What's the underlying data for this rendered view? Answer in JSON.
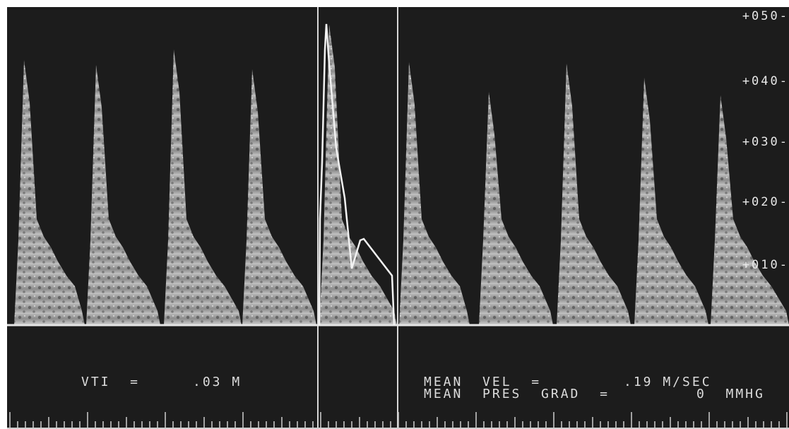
{
  "scale": {
    "labels": [
      "+050-",
      "+040-",
      "+030-",
      "+020-",
      "+010-"
    ]
  },
  "measurements": {
    "vti_label": "VTI  =",
    "vti_value": ".03 M",
    "mean_vel_label": "MEAN  VEL  =",
    "mean_vel_value": ".19 M/SEC",
    "mean_pres_grad_label": "MEAN  PRES  GRAD  =",
    "mean_pres_grad_value": "0  MMHG"
  },
  "colors": {
    "background": "#1c1c1c",
    "trace": "#e0e0e0",
    "text": "#dcdcdc"
  }
}
